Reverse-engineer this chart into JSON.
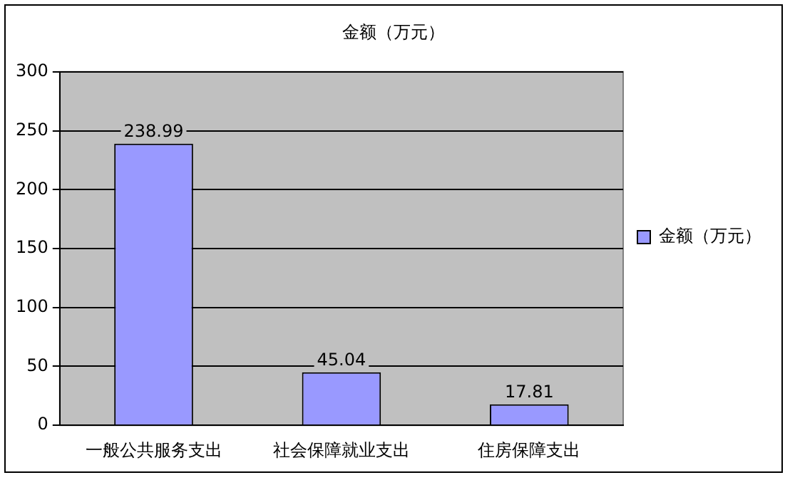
{
  "chart_data": {
    "type": "bar",
    "title": "金额（万元）",
    "categories": [
      "一般公共服务支出",
      "社会保障就业支出",
      "住房保障支出"
    ],
    "series": [
      {
        "name": "金额（万元）",
        "color": "#9999ff",
        "values": [
          238.99,
          45.04,
          17.81
        ]
      }
    ],
    "ylim": [
      0,
      300
    ],
    "yticks": [
      0,
      50,
      100,
      150,
      200,
      250,
      300
    ],
    "grid": "y",
    "legend": "right",
    "data_labels": true
  }
}
